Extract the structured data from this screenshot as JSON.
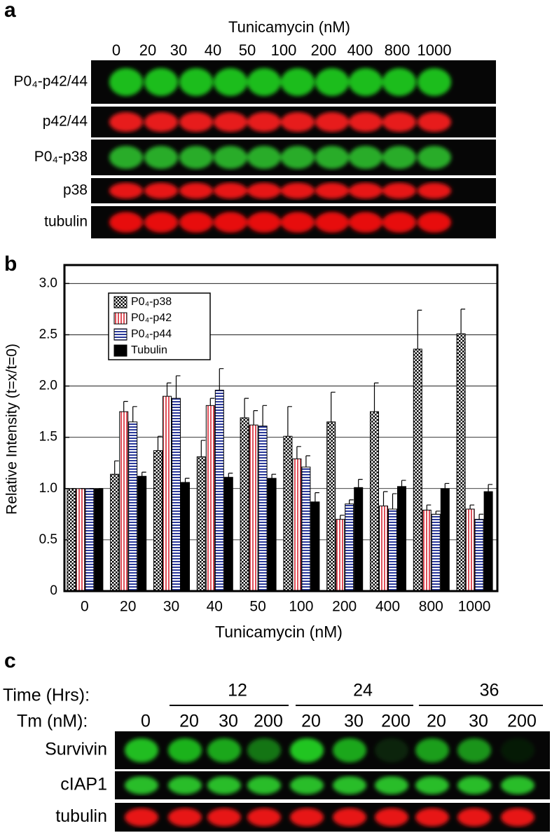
{
  "panel_a": {
    "label": "a",
    "title": "Tunicamycin (nM)",
    "lanes": [
      "0",
      "20",
      "30",
      "40",
      "50",
      "100",
      "200",
      "400",
      "800",
      "1000"
    ],
    "rows": [
      "P0₄-p42/44",
      "p42/44",
      "P0₄-p38",
      "p38",
      "tubulin"
    ]
  },
  "panel_b": {
    "label": "b"
  },
  "chart_data": {
    "type": "bar",
    "x_label": "Tunicamycin (nM)",
    "y_label": "Relative Intensity (t=x/t=0)",
    "categories": [
      "0",
      "20",
      "30",
      "40",
      "50",
      "100",
      "200",
      "400",
      "800",
      "1000"
    ],
    "series": [
      {
        "name": "P0₄-p38",
        "color": "#000000",
        "values": [
          1.0,
          1.14,
          1.37,
          1.31,
          1.69,
          1.51,
          1.65,
          1.75,
          2.36,
          2.51
        ],
        "errors": [
          0,
          0.13,
          0.14,
          0.16,
          0.19,
          0.29,
          0.29,
          0.28,
          0.38,
          0.24
        ]
      },
      {
        "name": "P0₄-p42",
        "color": "#e0505a",
        "values": [
          1.0,
          1.75,
          1.9,
          1.81,
          1.62,
          1.29,
          0.7,
          0.83,
          0.79,
          0.8
        ],
        "errors": [
          0,
          0.1,
          0.13,
          0.07,
          0.14,
          0.12,
          0.04,
          0.14,
          0.05,
          0.04
        ]
      },
      {
        "name": "P0₄-p44",
        "color": "#2b3a9a",
        "values": [
          1.0,
          1.65,
          1.88,
          1.96,
          1.61,
          1.21,
          0.85,
          0.8,
          0.75,
          0.7
        ],
        "errors": [
          0,
          0.15,
          0.22,
          0.21,
          0.2,
          0.11,
          0.04,
          0.15,
          0.03,
          0.05
        ]
      },
      {
        "name": "Tubulin",
        "color": "#000000",
        "values": [
          1.0,
          1.12,
          1.06,
          1.11,
          1.1,
          0.87,
          1.01,
          1.02,
          1.0,
          0.97
        ],
        "errors": [
          0,
          0.04,
          0.04,
          0.04,
          0.04,
          0.09,
          0.08,
          0.06,
          0.05,
          0.07
        ]
      }
    ],
    "ylim": [
      0,
      3.18
    ],
    "yticks": [
      0,
      0.5,
      {
        "value": 1,
        "label": "1.0"
      },
      1.5,
      {
        "value": 2,
        "label": "2.0"
      },
      2.5,
      {
        "value": 3,
        "label": "3.0"
      }
    ],
    "grid": true,
    "legend": "upper left"
  },
  "panel_c": {
    "label": "c",
    "time_label": "Time (Hrs):",
    "time_groups": [
      "12",
      "24",
      "36"
    ],
    "tm_label": "Tm (nM):",
    "lanes": [
      "0",
      "20",
      "30",
      "200",
      "20",
      "30",
      "200",
      "20",
      "30",
      "200"
    ],
    "rows": [
      "Survivin",
      "cIAP1",
      "tubulin"
    ]
  }
}
